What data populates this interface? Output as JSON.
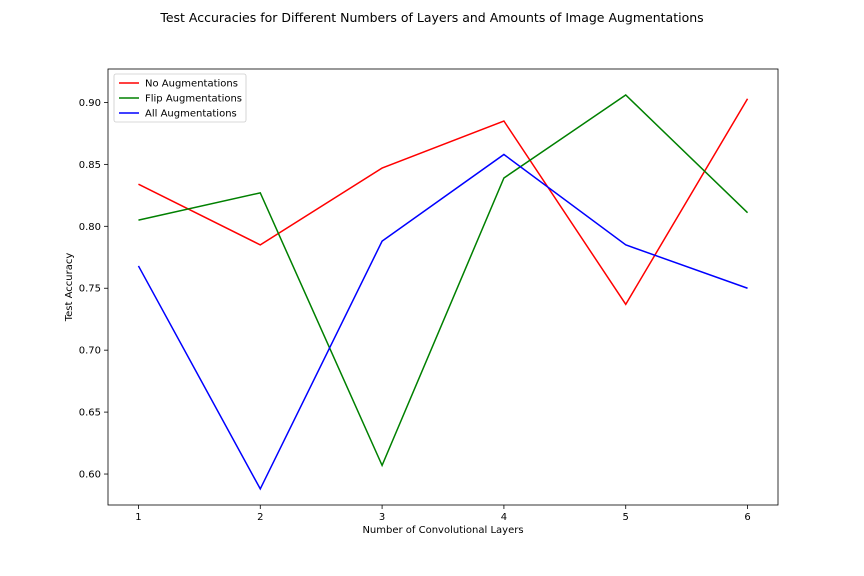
{
  "chart_data": {
    "type": "line",
    "title": "Test Accuracies for Different Numbers of Layers and Amounts of Image Augmentations",
    "xlabel": "Number of Convolutional Layers",
    "ylabel": "Test Accuracy",
    "x": [
      1,
      2,
      3,
      4,
      5,
      6
    ],
    "xlim": [
      0.75,
      6.25
    ],
    "ylim": [
      0.575,
      0.927
    ],
    "xticks": [
      "1",
      "2",
      "3",
      "4",
      "5",
      "6"
    ],
    "yticks": [
      "0.60",
      "0.65",
      "0.70",
      "0.75",
      "0.80",
      "0.85",
      "0.90"
    ],
    "grid": false,
    "legend_position": "top-left",
    "series": [
      {
        "name": "No Augmentations",
        "color": "#ff0000",
        "values": [
          0.834,
          0.785,
          0.847,
          0.885,
          0.737,
          0.903
        ]
      },
      {
        "name": "Flip Augmentations",
        "color": "#008000",
        "values": [
          0.805,
          0.827,
          0.607,
          0.839,
          0.906,
          0.811
        ]
      },
      {
        "name": "All Augmentations",
        "color": "#0000ff",
        "values": [
          0.768,
          0.588,
          0.788,
          0.858,
          0.785,
          0.75
        ]
      }
    ]
  }
}
